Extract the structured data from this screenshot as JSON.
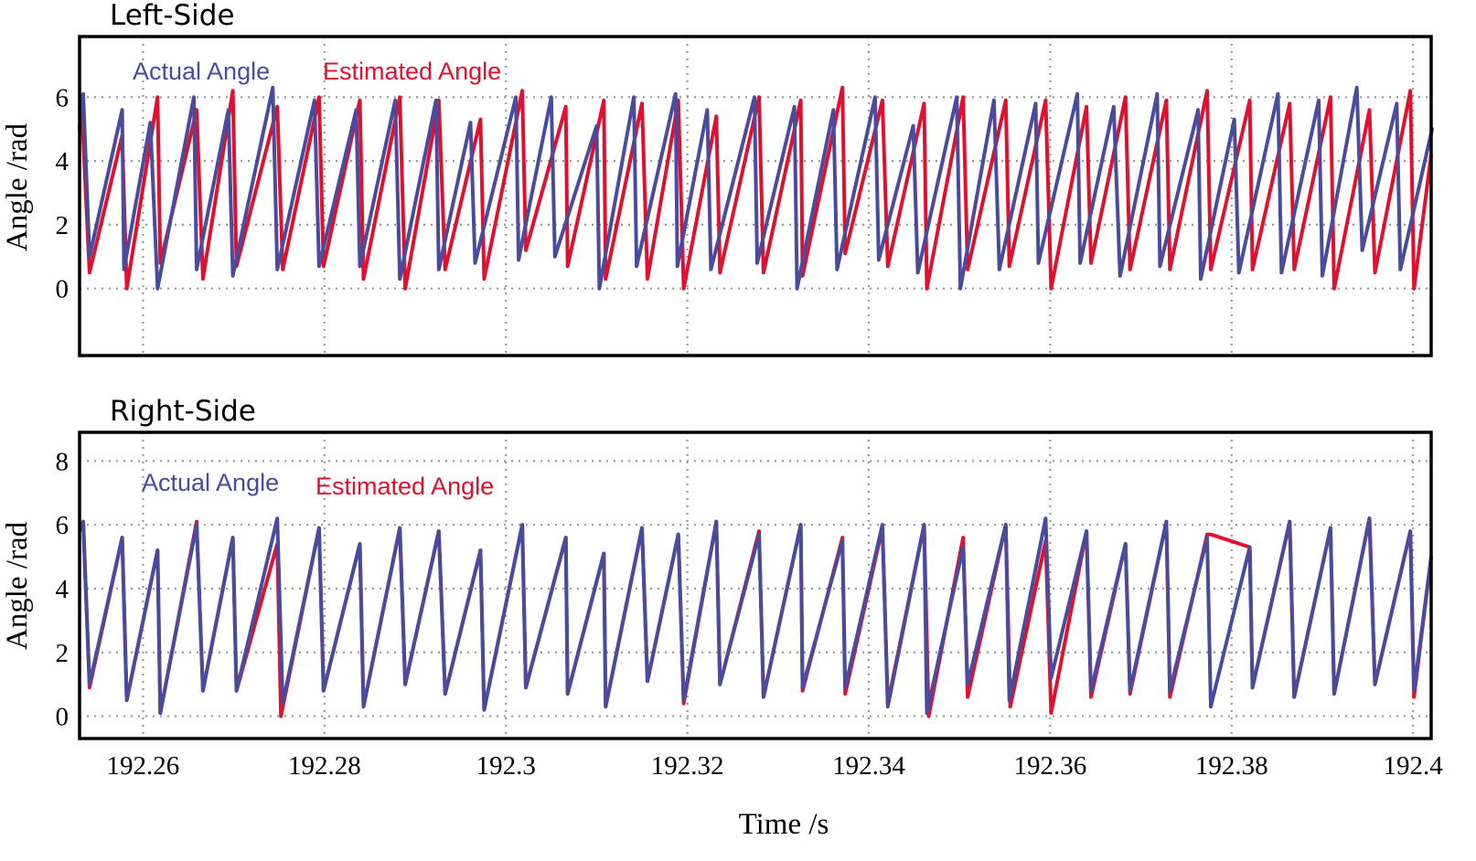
{
  "chart_data": [
    {
      "type": "line",
      "title": "Left-Side",
      "xlabel": "",
      "ylabel": "Angle /rad",
      "xlim": [
        192.253,
        192.402
      ],
      "ylim": [
        -2.1,
        7.9
      ],
      "x_ticks": [
        192.26,
        192.28,
        192.3,
        192.32,
        192.34,
        192.36,
        192.38,
        192.4
      ],
      "y_ticks": [
        0,
        2,
        4,
        6
      ],
      "grid": true,
      "legend_position": "top-left",
      "colors": {
        "actual": "#4b4b9e",
        "estimated": "#e0102e"
      },
      "series": [
        {
          "name": "Actual Angle",
          "x": [
            192.253,
            192.2534,
            192.2541,
            192.2577,
            192.2579,
            192.2608,
            192.2616,
            192.2656,
            192.2659,
            192.2694,
            192.2699,
            192.2743,
            192.2748,
            192.2789,
            192.2794,
            192.2835,
            192.2839,
            192.2878,
            192.2883,
            192.2923,
            192.2926,
            192.2961,
            192.2966,
            192.3011,
            192.3014,
            192.305,
            192.3054,
            192.31,
            192.3103,
            192.3141,
            192.3144,
            192.3187,
            192.3189,
            192.3222,
            192.3226,
            192.3274,
            192.3277,
            192.3318,
            192.3321,
            192.3361,
            192.3365,
            192.3407,
            192.3411,
            192.3449,
            192.3454,
            192.3497,
            192.3501,
            192.3538,
            192.3544,
            192.3584,
            192.3587,
            192.363,
            192.3633,
            192.367,
            192.3677,
            192.3718,
            192.3721,
            192.3763,
            192.3766,
            192.3803,
            192.3808,
            192.3851,
            192.3855,
            192.3896,
            192.39,
            192.3938,
            192.3944,
            192.3982,
            192.3986,
            192.4021,
            192.402
          ],
          "y": [
            5.6,
            6.1,
            1.0,
            5.6,
            0.6,
            5.2,
            0.0,
            6.0,
            0.6,
            5.6,
            0.4,
            6.3,
            0.6,
            5.9,
            0.7,
            5.6,
            0.7,
            5.9,
            0.3,
            5.9,
            0.6,
            5.2,
            0.8,
            6.0,
            0.9,
            6.0,
            1.0,
            5.1,
            0.0,
            6.0,
            0.7,
            6.1,
            0.7,
            5.6,
            0.6,
            6.0,
            0.8,
            5.7,
            0.0,
            5.6,
            0.6,
            6.0,
            0.9,
            5.1,
            0.5,
            6.0,
            0.0,
            5.9,
            0.6,
            5.8,
            0.8,
            6.1,
            0.8,
            5.7,
            0.4,
            6.1,
            0.7,
            5.6,
            0.3,
            5.3,
            0.5,
            6.1,
            0.5,
            5.9,
            0.4,
            6.3,
            1.2,
            5.8,
            0.6,
            5.0,
            5.0
          ]
        },
        {
          "name": "Estimated Angle",
          "x": [
            192.253,
            192.2532,
            192.2541,
            192.2577,
            192.2582,
            192.2616,
            192.2619,
            192.2659,
            192.2666,
            192.2699,
            192.2703,
            192.2748,
            192.2754,
            192.2794,
            192.2799,
            192.2839,
            192.2843,
            192.2883,
            192.2889,
            192.2926,
            192.2933,
            192.2972,
            192.2976,
            192.3018,
            192.3022,
            192.3066,
            192.3068,
            192.3108,
            192.311,
            192.315,
            192.3156,
            192.319,
            192.3196,
            192.3232,
            192.3236,
            192.3279,
            192.3284,
            192.3325,
            192.3327,
            192.3371,
            192.3374,
            192.3415,
            192.3421,
            192.3461,
            192.3464,
            192.3504,
            192.3509,
            192.3551,
            192.3555,
            192.3595,
            192.3601,
            192.364,
            192.3645,
            192.3683,
            192.3688,
            192.3728,
            192.3732,
            192.3773,
            192.3777,
            192.382,
            192.3823,
            192.3864,
            192.3869,
            192.3909,
            192.3913,
            192.3952,
            192.3958,
            192.3997,
            192.4001,
            192.402
          ],
          "y": [
            5.0,
            5.9,
            0.5,
            4.8,
            0.0,
            6.0,
            0.8,
            5.6,
            0.3,
            6.2,
            0.7,
            5.7,
            0.6,
            6.0,
            0.7,
            5.9,
            0.3,
            6.0,
            0.0,
            5.9,
            0.6,
            5.3,
            0.3,
            6.2,
            1.2,
            5.7,
            0.7,
            5.9,
            0.3,
            5.8,
            0.3,
            5.9,
            0.0,
            5.4,
            0.5,
            6.0,
            0.5,
            5.9,
            0.4,
            6.3,
            1.1,
            5.9,
            0.7,
            5.8,
            0.0,
            6.0,
            0.6,
            5.9,
            0.7,
            5.9,
            0.0,
            5.7,
            0.8,
            6.0,
            0.6,
            5.9,
            0.6,
            6.2,
            0.6,
            5.9,
            0.6,
            5.8,
            0.6,
            6.0,
            0.0,
            5.6,
            0.5,
            6.2,
            0.0,
            4.2
          ]
        }
      ]
    },
    {
      "type": "line",
      "title": "Right-Side",
      "xlabel": "Time /s",
      "ylabel": "Angle /rad",
      "xlim": [
        192.253,
        192.402
      ],
      "ylim": [
        -0.7,
        8.9
      ],
      "x_ticks": [
        192.26,
        192.28,
        192.3,
        192.32,
        192.34,
        192.36,
        192.38,
        192.4
      ],
      "y_ticks": [
        0,
        2,
        4,
        6,
        8
      ],
      "grid": true,
      "legend_position": "top-left",
      "colors": {
        "actual": "#4b4b9e",
        "estimated": "#e0102e"
      },
      "series": [
        {
          "name": "Actual Angle",
          "x": [
            192.253,
            192.2534,
            192.2541,
            192.2577,
            192.2582,
            192.2616,
            192.2619,
            192.2659,
            192.2666,
            192.2699,
            192.2703,
            192.2748,
            192.2754,
            192.2794,
            192.2799,
            192.2839,
            192.2843,
            192.2883,
            192.2889,
            192.2926,
            192.2933,
            192.2972,
            192.2976,
            192.3018,
            192.3022,
            192.3066,
            192.3068,
            192.3108,
            192.311,
            192.315,
            192.3156,
            192.319,
            192.3196,
            192.3232,
            192.3236,
            192.3279,
            192.3284,
            192.3325,
            192.3327,
            192.3371,
            192.3374,
            192.3415,
            192.3421,
            192.3461,
            192.3464,
            192.3504,
            192.3509,
            192.3551,
            192.3555,
            192.3595,
            192.3601,
            192.364,
            192.3645,
            192.3683,
            192.3688,
            192.3728,
            192.3732,
            192.3773,
            192.3777,
            192.382,
            192.3823,
            192.3864,
            192.3869,
            192.3909,
            192.3913,
            192.3952,
            192.3958,
            192.3997,
            192.4001,
            192.402
          ],
          "y": [
            5.8,
            6.1,
            1.0,
            5.6,
            0.5,
            5.2,
            0.1,
            6.0,
            0.8,
            5.6,
            0.8,
            6.2,
            0.4,
            5.9,
            0.8,
            5.4,
            0.3,
            5.9,
            1.0,
            5.8,
            0.7,
            5.2,
            0.2,
            6.0,
            0.9,
            5.6,
            0.7,
            5.1,
            0.3,
            5.9,
            1.1,
            5.7,
            0.5,
            6.1,
            1.0,
            5.7,
            0.6,
            6.0,
            0.9,
            5.5,
            0.9,
            6.0,
            0.3,
            6.0,
            0.1,
            5.3,
            1.0,
            6.0,
            0.5,
            6.2,
            1.2,
            5.8,
            0.8,
            5.4,
            0.8,
            6.1,
            0.8,
            5.6,
            0.3,
            5.3,
            0.9,
            6.1,
            0.6,
            5.9,
            0.7,
            6.2,
            1.0,
            5.8,
            0.8,
            5.0
          ]
        },
        {
          "name": "Estimated Angle",
          "x": [
            192.253,
            192.2534,
            192.2541,
            192.2577,
            192.2582,
            192.2616,
            192.2619,
            192.2659,
            192.2666,
            192.2699,
            192.2703,
            192.2748,
            192.2752,
            192.2794,
            192.2799,
            192.2839,
            192.2843,
            192.2883,
            192.2889,
            192.2926,
            192.2933,
            192.2972,
            192.2976,
            192.3018,
            192.3022,
            192.3066,
            192.3068,
            192.3108,
            192.311,
            192.315,
            192.3156,
            192.319,
            192.3196,
            192.3232,
            192.3236,
            192.3279,
            192.3284,
            192.3325,
            192.3327,
            192.3371,
            192.3374,
            192.3415,
            192.3421,
            192.3461,
            192.3466,
            192.3504,
            192.3509,
            192.3551,
            192.3556,
            192.3595,
            192.3601,
            192.364,
            192.3645,
            192.3683,
            192.3688,
            192.3728,
            192.3732,
            192.3773,
            192.3777,
            192.382,
            192.3823,
            192.3864,
            192.3869,
            192.3909,
            192.3913,
            192.3952,
            192.3958,
            192.3997,
            192.4001,
            192.402
          ],
          "y": [
            5.8,
            6.1,
            0.9,
            5.6,
            0.5,
            5.2,
            0.1,
            6.1,
            0.8,
            5.6,
            0.8,
            5.4,
            0.0,
            5.9,
            0.8,
            5.4,
            0.3,
            5.9,
            1.0,
            5.8,
            0.7,
            5.2,
            0.2,
            6.0,
            0.9,
            5.6,
            0.7,
            5.1,
            0.3,
            5.9,
            1.1,
            5.7,
            0.4,
            6.1,
            1.0,
            5.8,
            0.6,
            6.0,
            0.8,
            5.6,
            0.7,
            5.9,
            0.4,
            6.0,
            0.0,
            5.6,
            0.6,
            6.0,
            0.3,
            5.5,
            0.1,
            5.8,
            0.6,
            5.4,
            0.7,
            6.1,
            0.6,
            5.7,
            5.7,
            5.3,
            0.9,
            6.1,
            0.6,
            5.9,
            0.7,
            6.2,
            1.0,
            5.8,
            0.6,
            5.0
          ]
        }
      ]
    }
  ]
}
